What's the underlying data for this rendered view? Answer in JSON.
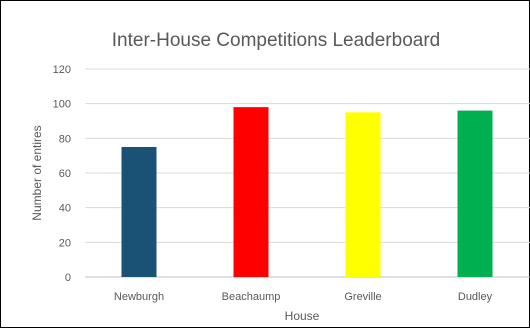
{
  "chart_data": {
    "type": "bar",
    "title": "Inter-House Competitions Leaderboard",
    "xlabel": "House",
    "ylabel": "Number of entires",
    "categories": [
      "Newburgh",
      "Beachaump",
      "Greville",
      "Dudley"
    ],
    "values": [
      75,
      98,
      95,
      96
    ],
    "bar_colors": [
      "#1a5276",
      "#ff0000",
      "#ffff00",
      "#00b050"
    ],
    "ylim": [
      0,
      120
    ],
    "yticks": [
      0,
      20,
      40,
      60,
      80,
      100,
      120
    ],
    "grid": true,
    "legend": "none"
  }
}
